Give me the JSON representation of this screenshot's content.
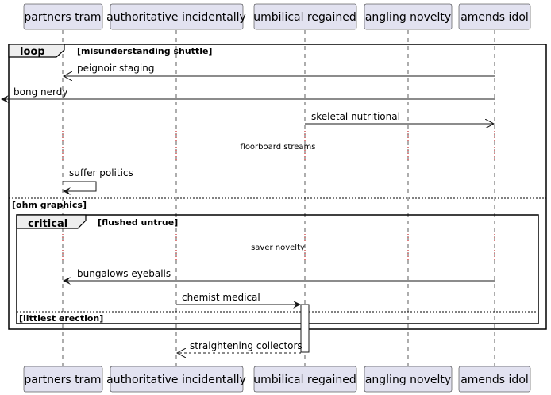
{
  "participants": [
    {
      "name": "partners tram"
    },
    {
      "name": "authoritative incidentally"
    },
    {
      "name": "umbilical regained"
    },
    {
      "name": "angling novelty"
    },
    {
      "name": "amends idol"
    }
  ],
  "fragments": {
    "loop": {
      "keyword": "loop",
      "guard": "[misunderstanding shuttle]",
      "else_guard": "[ohm graphics]"
    },
    "critical": {
      "keyword": "critical",
      "guard": "[flushed untrue]",
      "else_guard": "[littlest erection]"
    }
  },
  "messages": {
    "m1": "peignoir staging",
    "m2": "bong nerdy",
    "m3": "skeletal nutritional",
    "delay1": "floorboard streams",
    "m4": "suffer politics",
    "delay2": "saver novelty",
    "m5": "bungalows eyeballs",
    "m6": "chemist medical",
    "m7": "straightening collectors"
  }
}
